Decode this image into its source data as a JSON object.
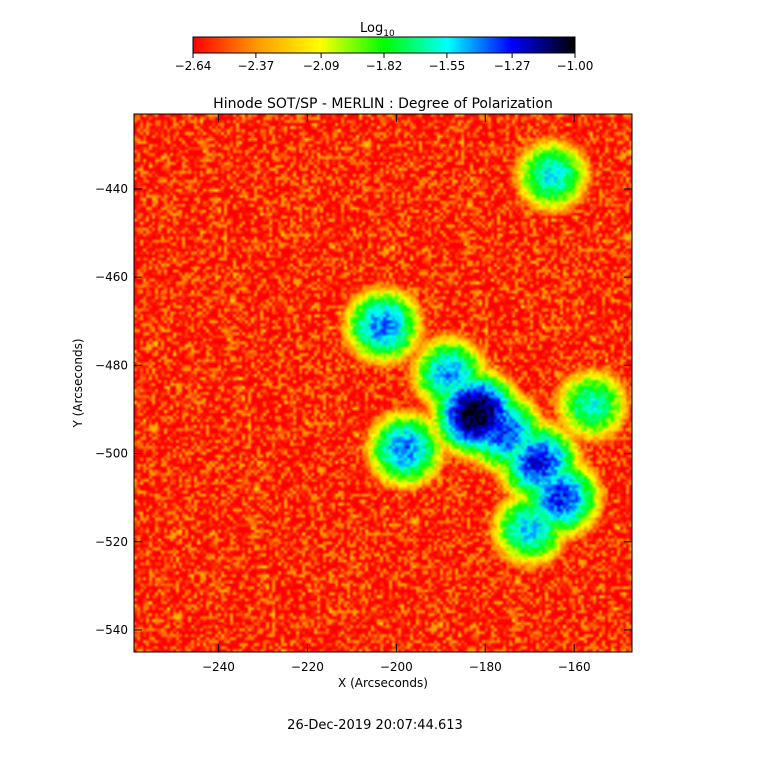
{
  "colorbar": {
    "label": "Log",
    "label_subscript": "10",
    "ticks": [
      "-2.64",
      "-2.37",
      "-2.09",
      "-1.82",
      "-1.55",
      "-1.27",
      "-1.00"
    ],
    "range": [
      -2.64,
      -1.0
    ],
    "colormap": [
      "#ff0000",
      "#ff9900",
      "#ffff00",
      "#00ff00",
      "#00ffff",
      "#0000ff",
      "#000000"
    ]
  },
  "chart_data": {
    "type": "heatmap",
    "title": "Hinode SOT/SP - MERLIN : Degree of Polarization",
    "xlabel": "X (Arcseconds)",
    "ylabel": "Y (Arcseconds)",
    "xlim": [
      -259,
      -147
    ],
    "ylim": [
      -545,
      -423
    ],
    "x_ticks": [
      -240,
      -220,
      -200,
      -180,
      -160
    ],
    "y_ticks": [
      -440,
      -460,
      -480,
      -500,
      -520,
      -540
    ],
    "x_tick_labels": [
      "−240",
      "−220",
      "−200",
      "−180",
      "−160"
    ],
    "y_tick_labels": [
      "−440",
      "−460",
      "−480",
      "−500",
      "−520",
      "−540"
    ],
    "value_units": "log10 degree of polarization",
    "background_value": -2.6,
    "features": [
      {
        "x": -182,
        "y": -491,
        "value": -1.0
      },
      {
        "x": -176,
        "y": -495,
        "value": -1.3
      },
      {
        "x": -168,
        "y": -502,
        "value": -1.25
      },
      {
        "x": -163,
        "y": -510,
        "value": -1.3
      },
      {
        "x": -188,
        "y": -482,
        "value": -1.45
      },
      {
        "x": -203,
        "y": -471,
        "value": -1.4
      },
      {
        "x": -198,
        "y": -499,
        "value": -1.4
      },
      {
        "x": -170,
        "y": -517,
        "value": -1.5
      },
      {
        "x": -156,
        "y": -489,
        "value": -1.6
      },
      {
        "x": -165,
        "y": -437,
        "value": -1.55
      }
    ],
    "grid": false
  },
  "footer": {
    "timestamp": "26-Dec-2019 20:07:44.613"
  }
}
